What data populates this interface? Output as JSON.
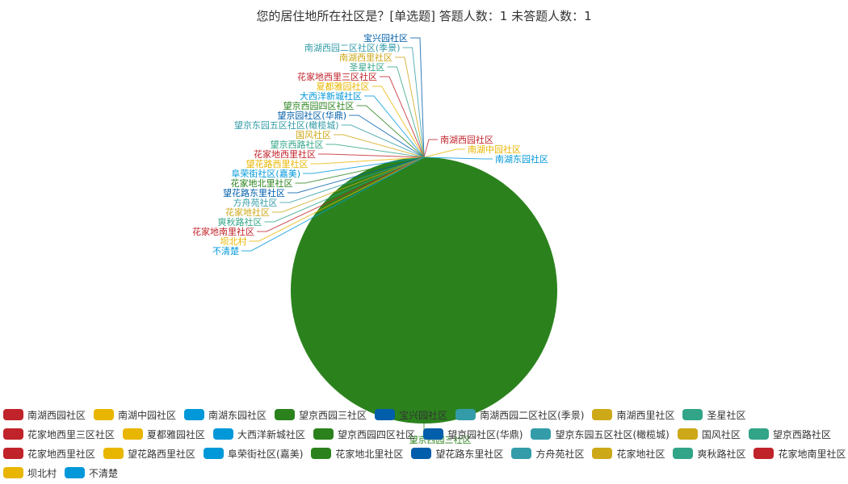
{
  "chart_data": {
    "type": "pie",
    "title": "您的居住地所在社区是？[单选题]  答题人数：1  未答题人数：1",
    "legend_position": "bottom",
    "categories": [
      "南湖西园社区",
      "南湖中园社区",
      "南湖东园社区",
      "望京西园三社区",
      "宝兴园社区",
      "南湖西园二区社区(季景)",
      "南湖西里社区",
      "圣星社区",
      "花家地西里三区社区",
      "夏都雅园社区",
      "大西洋新城社区",
      "望京西园四区社区",
      "望京园社区(华鼎)",
      "望京东园五区社区(橄榄城)",
      "国风社区",
      "望京西路社区",
      "花家地西里社区",
      "望花路西里社区",
      "阜荣街社区(嘉美)",
      "花家地北里社区",
      "望花路东里社区",
      "方舟苑社区",
      "花家地社区",
      "爽秋路社区",
      "花家地南里社区",
      "坝北村",
      "不清楚"
    ],
    "values": [
      0,
      0,
      0,
      1,
      0,
      0,
      0,
      0,
      0,
      0,
      0,
      0,
      0,
      0,
      0,
      0,
      0,
      0,
      0,
      0,
      0,
      0,
      0,
      0,
      0,
      0,
      0
    ],
    "colors": [
      "#c1232b",
      "#e8b600",
      "#0098d9",
      "#2b821d",
      "#005eaa",
      "#339ca8",
      "#cda819",
      "#32a487"
    ]
  }
}
